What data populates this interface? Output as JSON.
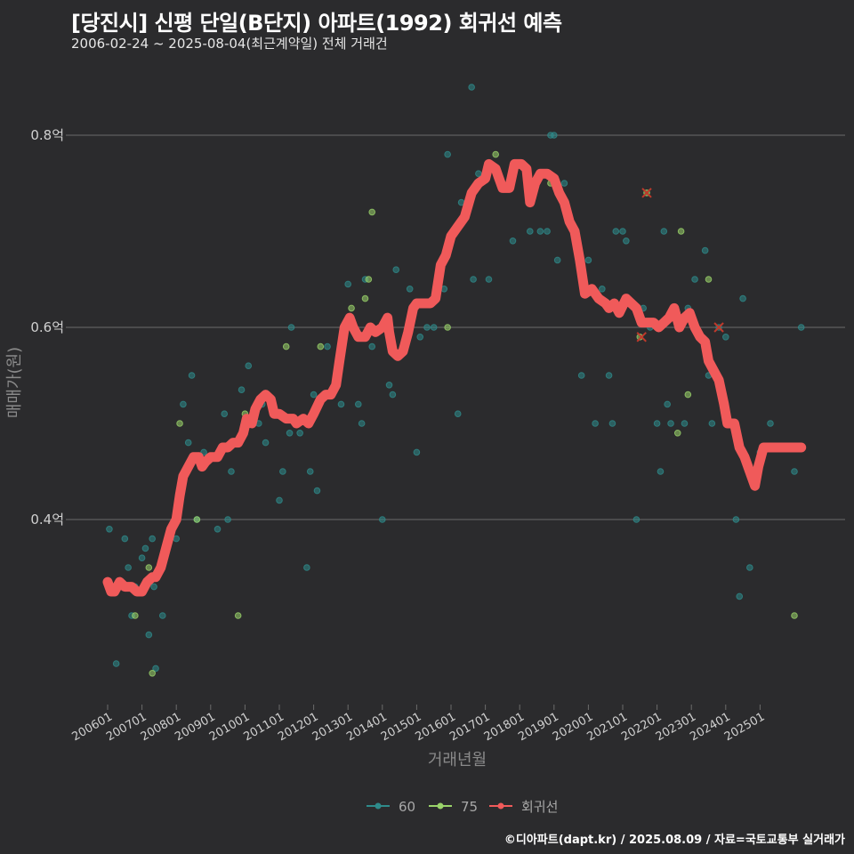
{
  "chart_data": {
    "type": "scatter",
    "title": "[당진시] 신평 단일(B단지) 아파트(1992) 회귀선 예측",
    "subtitle": "2006-02-24 ~ 2025-08-04(최근계약일) 전체 거래건",
    "xlabel": "거래년월",
    "ylabel": "매매가(원)",
    "ylim": [
      0.22,
      0.87
    ],
    "y_ticks": [
      0.4,
      0.6,
      0.8
    ],
    "y_tick_labels": [
      "0.4억",
      "0.6억",
      "0.8억"
    ],
    "x_range": [
      2005.7,
      2026.4
    ],
    "x_ticks": [
      2006,
      2007,
      2008,
      2009,
      2010,
      2011,
      2012,
      2013,
      2014,
      2015,
      2016,
      2017,
      2018,
      2019,
      2020,
      2021,
      2022,
      2023,
      2024,
      2025
    ],
    "x_tick_labels": [
      "200601",
      "200701",
      "200801",
      "200901",
      "201001",
      "201101",
      "201201",
      "201301",
      "201401",
      "201501",
      "201601",
      "201701",
      "201801",
      "201901",
      "202001",
      "202101",
      "202201",
      "202301",
      "202401",
      "202501"
    ],
    "grid": true,
    "legend_position": "bottom",
    "legend": [
      "60",
      "75",
      "회귀선"
    ],
    "colors": {
      "s60": "#2e8b8b",
      "s75": "#9ad36a",
      "regression": "#f05a5a",
      "background": "#2b2b2d",
      "grid": "#6b6b6b",
      "text": "#d0d0d0"
    },
    "series": [
      {
        "name": "60",
        "points": [
          [
            2006.05,
            0.39
          ],
          [
            2006.25,
            0.25
          ],
          [
            2006.5,
            0.38
          ],
          [
            2006.6,
            0.35
          ],
          [
            2006.7,
            0.3
          ],
          [
            2006.8,
            0.33
          ],
          [
            2007.0,
            0.36
          ],
          [
            2007.1,
            0.37
          ],
          [
            2007.2,
            0.28
          ],
          [
            2007.3,
            0.38
          ],
          [
            2007.35,
            0.33
          ],
          [
            2007.4,
            0.245
          ],
          [
            2007.6,
            0.3
          ],
          [
            2008.0,
            0.38
          ],
          [
            2008.2,
            0.52
          ],
          [
            2008.35,
            0.48
          ],
          [
            2008.45,
            0.55
          ],
          [
            2008.6,
            0.4
          ],
          [
            2008.8,
            0.47
          ],
          [
            2009.2,
            0.39
          ],
          [
            2009.4,
            0.51
          ],
          [
            2009.5,
            0.4
          ],
          [
            2009.6,
            0.45
          ],
          [
            2009.9,
            0.535
          ],
          [
            2010.1,
            0.56
          ],
          [
            2010.4,
            0.5
          ],
          [
            2010.5,
            0.52
          ],
          [
            2010.6,
            0.48
          ],
          [
            2010.9,
            0.51
          ],
          [
            2011.0,
            0.42
          ],
          [
            2011.1,
            0.45
          ],
          [
            2011.3,
            0.49
          ],
          [
            2011.35,
            0.6
          ],
          [
            2011.5,
            0.5
          ],
          [
            2011.6,
            0.49
          ],
          [
            2011.8,
            0.35
          ],
          [
            2011.9,
            0.45
          ],
          [
            2012.0,
            0.53
          ],
          [
            2012.1,
            0.43
          ],
          [
            2012.4,
            0.58
          ],
          [
            2012.8,
            0.52
          ],
          [
            2013.0,
            0.645
          ],
          [
            2013.3,
            0.52
          ],
          [
            2013.4,
            0.5
          ],
          [
            2013.5,
            0.65
          ],
          [
            2013.7,
            0.58
          ],
          [
            2014.0,
            0.4
          ],
          [
            2014.2,
            0.54
          ],
          [
            2014.3,
            0.53
          ],
          [
            2014.4,
            0.66
          ],
          [
            2014.8,
            0.64
          ],
          [
            2015.0,
            0.47
          ],
          [
            2015.1,
            0.59
          ],
          [
            2015.3,
            0.6
          ],
          [
            2015.5,
            0.6
          ],
          [
            2015.8,
            0.64
          ],
          [
            2015.9,
            0.78
          ],
          [
            2016.2,
            0.51
          ],
          [
            2016.3,
            0.73
          ],
          [
            2016.6,
            0.85
          ],
          [
            2016.65,
            0.65
          ],
          [
            2016.8,
            0.76
          ],
          [
            2017.1,
            0.65
          ],
          [
            2017.8,
            0.69
          ],
          [
            2018.3,
            0.7
          ],
          [
            2018.6,
            0.7
          ],
          [
            2018.8,
            0.7
          ],
          [
            2018.9,
            0.8
          ],
          [
            2019.0,
            0.8
          ],
          [
            2019.1,
            0.67
          ],
          [
            2019.3,
            0.75
          ],
          [
            2019.8,
            0.55
          ],
          [
            2020.0,
            0.67
          ],
          [
            2020.2,
            0.5
          ],
          [
            2020.4,
            0.64
          ],
          [
            2020.6,
            0.55
          ],
          [
            2020.7,
            0.5
          ],
          [
            2020.8,
            0.7
          ],
          [
            2021.0,
            0.7
          ],
          [
            2021.1,
            0.69
          ],
          [
            2021.4,
            0.4
          ],
          [
            2021.6,
            0.62
          ],
          [
            2021.8,
            0.6
          ],
          [
            2022.0,
            0.5
          ],
          [
            2022.1,
            0.45
          ],
          [
            2022.2,
            0.7
          ],
          [
            2022.3,
            0.52
          ],
          [
            2022.4,
            0.5
          ],
          [
            2022.6,
            0.6
          ],
          [
            2022.8,
            0.5
          ],
          [
            2022.9,
            0.62
          ],
          [
            2023.1,
            0.65
          ],
          [
            2023.4,
            0.68
          ],
          [
            2023.5,
            0.55
          ],
          [
            2023.6,
            0.5
          ],
          [
            2023.8,
            0.6
          ],
          [
            2024.0,
            0.59
          ],
          [
            2024.3,
            0.4
          ],
          [
            2024.4,
            0.32
          ],
          [
            2024.5,
            0.63
          ],
          [
            2024.7,
            0.35
          ],
          [
            2025.0,
            0.47
          ],
          [
            2025.3,
            0.5
          ],
          [
            2026.0,
            0.45
          ],
          [
            2026.2,
            0.6
          ]
        ]
      },
      {
        "name": "75",
        "points": [
          [
            2006.8,
            0.3
          ],
          [
            2007.2,
            0.35
          ],
          [
            2007.3,
            0.24
          ],
          [
            2008.1,
            0.5
          ],
          [
            2008.6,
            0.4
          ],
          [
            2009.8,
            0.3
          ],
          [
            2010.0,
            0.51
          ],
          [
            2011.2,
            0.58
          ],
          [
            2012.2,
            0.58
          ],
          [
            2013.1,
            0.62
          ],
          [
            2013.5,
            0.63
          ],
          [
            2013.6,
            0.65
          ],
          [
            2013.7,
            0.72
          ],
          [
            2015.9,
            0.6
          ],
          [
            2017.3,
            0.78
          ],
          [
            2018.9,
            0.75
          ],
          [
            2021.5,
            0.59
          ],
          [
            2021.7,
            0.74
          ],
          [
            2022.6,
            0.49
          ],
          [
            2022.7,
            0.7
          ],
          [
            2022.9,
            0.53
          ],
          [
            2023.5,
            0.65
          ],
          [
            2026.0,
            0.3
          ]
        ]
      }
    ],
    "regression": [
      [
        2006.0,
        0.335
      ],
      [
        2006.1,
        0.325
      ],
      [
        2006.2,
        0.325
      ],
      [
        2006.35,
        0.335
      ],
      [
        2006.5,
        0.33
      ],
      [
        2006.7,
        0.33
      ],
      [
        2006.85,
        0.325
      ],
      [
        2007.0,
        0.325
      ],
      [
        2007.15,
        0.335
      ],
      [
        2007.3,
        0.34
      ],
      [
        2007.4,
        0.34
      ],
      [
        2007.55,
        0.35
      ],
      [
        2007.7,
        0.37
      ],
      [
        2007.85,
        0.39
      ],
      [
        2008.0,
        0.4
      ],
      [
        2008.1,
        0.425
      ],
      [
        2008.2,
        0.445
      ],
      [
        2008.35,
        0.455
      ],
      [
        2008.5,
        0.465
      ],
      [
        2008.65,
        0.465
      ],
      [
        2008.75,
        0.455
      ],
      [
        2008.85,
        0.46
      ],
      [
        2009.0,
        0.465
      ],
      [
        2009.2,
        0.465
      ],
      [
        2009.35,
        0.475
      ],
      [
        2009.5,
        0.475
      ],
      [
        2009.65,
        0.48
      ],
      [
        2009.8,
        0.48
      ],
      [
        2009.95,
        0.49
      ],
      [
        2010.05,
        0.505
      ],
      [
        2010.2,
        0.5
      ],
      [
        2010.3,
        0.515
      ],
      [
        2010.45,
        0.525
      ],
      [
        2010.6,
        0.53
      ],
      [
        2010.75,
        0.525
      ],
      [
        2010.85,
        0.51
      ],
      [
        2011.0,
        0.51
      ],
      [
        2011.2,
        0.505
      ],
      [
        2011.4,
        0.505
      ],
      [
        2011.5,
        0.5
      ],
      [
        2011.7,
        0.505
      ],
      [
        2011.85,
        0.5
      ],
      [
        2012.0,
        0.51
      ],
      [
        2012.2,
        0.525
      ],
      [
        2012.35,
        0.53
      ],
      [
        2012.5,
        0.53
      ],
      [
        2012.65,
        0.54
      ],
      [
        2012.75,
        0.565
      ],
      [
        2012.9,
        0.6
      ],
      [
        2013.05,
        0.61
      ],
      [
        2013.15,
        0.6
      ],
      [
        2013.3,
        0.59
      ],
      [
        2013.5,
        0.59
      ],
      [
        2013.65,
        0.6
      ],
      [
        2013.8,
        0.595
      ],
      [
        2014.0,
        0.6
      ],
      [
        2014.15,
        0.61
      ],
      [
        2014.2,
        0.595
      ],
      [
        2014.3,
        0.575
      ],
      [
        2014.45,
        0.57
      ],
      [
        2014.6,
        0.575
      ],
      [
        2014.75,
        0.595
      ],
      [
        2014.9,
        0.62
      ],
      [
        2015.0,
        0.625
      ],
      [
        2015.2,
        0.625
      ],
      [
        2015.4,
        0.625
      ],
      [
        2015.55,
        0.63
      ],
      [
        2015.7,
        0.665
      ],
      [
        2015.85,
        0.675
      ],
      [
        2016.0,
        0.695
      ],
      [
        2016.2,
        0.705
      ],
      [
        2016.4,
        0.715
      ],
      [
        2016.6,
        0.74
      ],
      [
        2016.8,
        0.75
      ],
      [
        2017.0,
        0.755
      ],
      [
        2017.1,
        0.77
      ],
      [
        2017.3,
        0.765
      ],
      [
        2017.4,
        0.755
      ],
      [
        2017.5,
        0.745
      ],
      [
        2017.7,
        0.745
      ],
      [
        2017.85,
        0.77
      ],
      [
        2018.05,
        0.77
      ],
      [
        2018.2,
        0.765
      ],
      [
        2018.3,
        0.73
      ],
      [
        2018.45,
        0.75
      ],
      [
        2018.6,
        0.76
      ],
      [
        2018.8,
        0.76
      ],
      [
        2019.0,
        0.755
      ],
      [
        2019.15,
        0.74
      ],
      [
        2019.3,
        0.73
      ],
      [
        2019.45,
        0.71
      ],
      [
        2019.6,
        0.7
      ],
      [
        2019.75,
        0.67
      ],
      [
        2019.9,
        0.635
      ],
      [
        2020.1,
        0.64
      ],
      [
        2020.3,
        0.63
      ],
      [
        2020.5,
        0.625
      ],
      [
        2020.6,
        0.62
      ],
      [
        2020.75,
        0.625
      ],
      [
        2020.9,
        0.615
      ],
      [
        2021.1,
        0.63
      ],
      [
        2021.25,
        0.625
      ],
      [
        2021.4,
        0.62
      ],
      [
        2021.55,
        0.605
      ],
      [
        2021.7,
        0.605
      ],
      [
        2021.9,
        0.605
      ],
      [
        2022.05,
        0.6
      ],
      [
        2022.2,
        0.605
      ],
      [
        2022.35,
        0.61
      ],
      [
        2022.5,
        0.62
      ],
      [
        2022.65,
        0.6
      ],
      [
        2022.8,
        0.61
      ],
      [
        2022.95,
        0.615
      ],
      [
        2023.1,
        0.6
      ],
      [
        2023.25,
        0.59
      ],
      [
        2023.4,
        0.585
      ],
      [
        2023.5,
        0.565
      ],
      [
        2023.65,
        0.555
      ],
      [
        2023.8,
        0.545
      ],
      [
        2023.95,
        0.52
      ],
      [
        2024.05,
        0.5
      ],
      [
        2024.25,
        0.5
      ],
      [
        2024.4,
        0.475
      ],
      [
        2024.55,
        0.465
      ],
      [
        2024.7,
        0.45
      ],
      [
        2024.85,
        0.435
      ],
      [
        2024.95,
        0.455
      ],
      [
        2025.1,
        0.475
      ],
      [
        2025.3,
        0.475
      ],
      [
        2025.6,
        0.475
      ],
      [
        2025.9,
        0.475
      ],
      [
        2026.2,
        0.475
      ]
    ],
    "outliers": [
      [
        2021.7,
        0.74
      ],
      [
        2021.55,
        0.59
      ],
      [
        2023.8,
        0.6
      ]
    ]
  },
  "footer": {
    "credit": "©디아파트(dapt.kr) / 2025.08.09 / 자료=국토교통부 실거래가"
  }
}
